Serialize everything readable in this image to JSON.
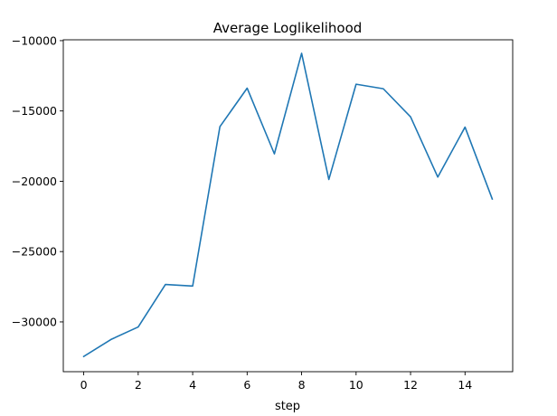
{
  "chart_data": {
    "type": "line",
    "title": "Average Loglikelihood",
    "xlabel": "step",
    "ylabel": "",
    "xlim": [
      -0.75,
      15.75
    ],
    "ylim": [
      -33540,
      -9940
    ],
    "xticks": [
      0,
      2,
      4,
      6,
      8,
      10,
      12,
      14
    ],
    "xtick_labels": [
      "0",
      "2",
      "4",
      "6",
      "8",
      "10",
      "12",
      "14"
    ],
    "yticks": [
      -10000,
      -15000,
      -20000,
      -25000,
      -30000
    ],
    "ytick_labels": [
      "−10000",
      "−15000",
      "−20000",
      "−25000",
      "−30000"
    ],
    "grid": false,
    "legend": "none",
    "series": [
      {
        "color": "#1f77b4",
        "x": [
          0,
          1,
          2,
          3,
          4,
          5,
          6,
          7,
          8,
          9,
          10,
          11,
          12,
          13,
          14,
          15
        ],
        "y": [
          -32460,
          -31250,
          -30360,
          -27340,
          -27450,
          -16120,
          -13380,
          -18050,
          -10900,
          -19870,
          -13100,
          -13420,
          -15420,
          -19700,
          -16150,
          -21260
        ]
      }
    ]
  }
}
